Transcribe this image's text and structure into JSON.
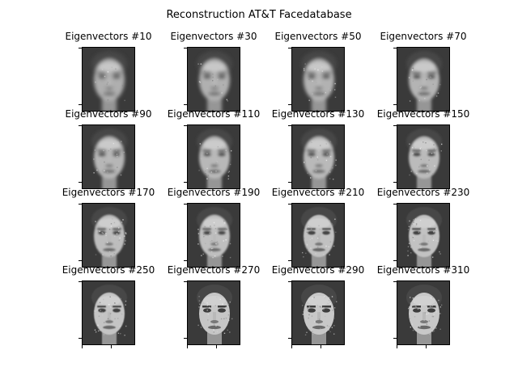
{
  "figure": {
    "title": "Reconstruction AT&T Facedatabase",
    "colormap": "gray"
  },
  "chart_data": {
    "type": "image-grid",
    "title": "Reconstruction AT&T Facedatabase",
    "grid": {
      "rows": 4,
      "cols": 4
    },
    "colormap": "gray",
    "panels": [
      {
        "title": "Eigenvectors #10",
        "eigenvectors": 10
      },
      {
        "title": "Eigenvectors #30",
        "eigenvectors": 30
      },
      {
        "title": "Eigenvectors #50",
        "eigenvectors": 50
      },
      {
        "title": "Eigenvectors #70",
        "eigenvectors": 70
      },
      {
        "title": "Eigenvectors #90",
        "eigenvectors": 90
      },
      {
        "title": "Eigenvectors #110",
        "eigenvectors": 110
      },
      {
        "title": "Eigenvectors #130",
        "eigenvectors": 130
      },
      {
        "title": "Eigenvectors #150",
        "eigenvectors": 150
      },
      {
        "title": "Eigenvectors #170",
        "eigenvectors": 170
      },
      {
        "title": "Eigenvectors #190",
        "eigenvectors": 190
      },
      {
        "title": "Eigenvectors #210",
        "eigenvectors": 210
      },
      {
        "title": "Eigenvectors #230",
        "eigenvectors": 230
      },
      {
        "title": "Eigenvectors #250",
        "eigenvectors": 250
      },
      {
        "title": "Eigenvectors #270",
        "eigenvectors": 270
      },
      {
        "title": "Eigenvectors #290",
        "eigenvectors": 290
      },
      {
        "title": "Eigenvectors #310",
        "eigenvectors": 310
      }
    ],
    "tick_labels": "none"
  }
}
